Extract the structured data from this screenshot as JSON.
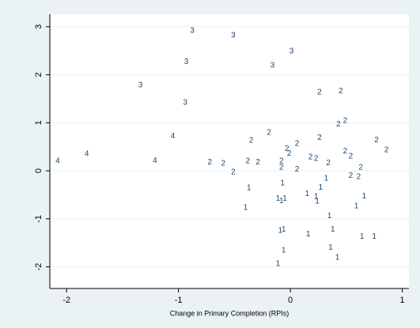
{
  "chart_data": {
    "type": "scatter",
    "x_label": "Change in Primary Completion (RPIs)",
    "xlim": [
      -2.15,
      1.06
    ],
    "ylim": [
      -2.45,
      3.26
    ],
    "xticks": [
      -2,
      -1,
      0,
      1
    ],
    "yticks": [
      -2,
      -1,
      0,
      1,
      2,
      3
    ],
    "grid": true,
    "color": "#1a476f",
    "x": [
      -0.876,
      -0.51,
      -0.93,
      0.01,
      -0.16,
      -1.34,
      -0.94,
      0.26,
      0.45,
      0.43,
      0.49,
      -0.19,
      -0.35,
      0.26,
      -1.05,
      -2.08,
      -1.82,
      -1.21,
      0.77,
      0.86,
      -0.03,
      0.06,
      -0.01,
      0.49,
      0.54,
      0.18,
      0.23,
      -0.72,
      -0.6,
      -0.38,
      -0.29,
      -0.08,
      0.34,
      -0.08,
      0.06,
      0.63,
      -0.51,
      0.54,
      0.61,
      -0.07,
      -0.37,
      0.32,
      0.27,
      0.15,
      0.23,
      0.24,
      -0.11,
      -0.08,
      -0.05,
      0.66,
      0.59,
      -0.4,
      0.35,
      -0.06,
      -0.09,
      0.38,
      0.16,
      0.64,
      0.75,
      0.36,
      -0.06,
      0.42,
      -0.11
    ],
    "y": [
      2.92,
      2.82,
      2.27,
      2.49,
      2.19,
      1.78,
      1.42,
      1.63,
      1.66,
      0.97,
      1.04,
      0.79,
      0.63,
      0.69,
      0.72,
      0.2,
      0.35,
      0.21,
      0.64,
      0.43,
      0.46,
      0.56,
      0.36,
      0.41,
      0.3,
      0.28,
      0.25,
      0.18,
      0.15,
      0.2,
      0.18,
      0.2,
      0.16,
      0.07,
      0.03,
      0.07,
      -0.03,
      -0.1,
      -0.13,
      -0.26,
      -0.36,
      -0.16,
      -0.35,
      -0.48,
      -0.54,
      -0.64,
      -0.58,
      -0.63,
      -0.58,
      -0.53,
      -0.74,
      -0.77,
      -0.94,
      -1.22,
      -1.25,
      -1.22,
      -1.32,
      -1.37,
      -1.37,
      -1.6,
      -1.66,
      -1.81,
      -1.94
    ],
    "labels": [
      "3",
      "3",
      "3",
      "3",
      "3",
      "3",
      "3",
      "2",
      "2",
      "2",
      "2",
      "2",
      "2",
      "2",
      "4",
      "4",
      "4",
      "4",
      "2",
      "2",
      "2",
      "2",
      "2",
      "2",
      "2",
      "2",
      "2",
      "2",
      "2",
      "2",
      "2",
      "2",
      "2",
      "2",
      "2",
      "2",
      "2",
      "2",
      "2",
      "1",
      "1",
      "1",
      "1",
      "1",
      "1",
      "1",
      "1",
      "1",
      "1",
      "1",
      "1",
      "1",
      "1",
      "1",
      "1",
      "1",
      "1",
      "1",
      "1",
      "1",
      "1",
      "1",
      "1"
    ]
  }
}
